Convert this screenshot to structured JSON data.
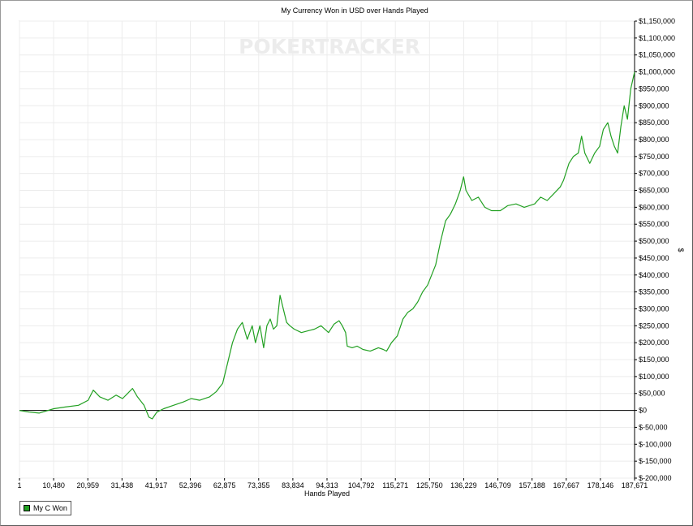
{
  "chart_data": {
    "type": "line",
    "title": "My Currency Won in USD over Hands Played",
    "watermark": "POKERTRACKER",
    "xlabel": "Hands Played",
    "ylabel": "$",
    "x_tick_labels": [
      "1",
      "10,480",
      "20,959",
      "31,438",
      "41,917",
      "52,396",
      "62,875",
      "73,355",
      "83,834",
      "94,313",
      "104,792",
      "115,271",
      "125,750",
      "136,229",
      "146,709",
      "157,188",
      "167,667",
      "178,146",
      "187,671"
    ],
    "y_tick_labels": [
      "$-200,000",
      "$-150,000",
      "$-100,000",
      "$-50,000",
      "$0",
      "$50,000",
      "$100,000",
      "$150,000",
      "$200,000",
      "$250,000",
      "$300,000",
      "$350,000",
      "$400,000",
      "$450,000",
      "$500,000",
      "$550,000",
      "$600,000",
      "$650,000",
      "$700,000",
      "$750,000",
      "$800,000",
      "$850,000",
      "$900,000",
      "$950,000",
      "$1,000,000",
      "$1,050,000",
      "$1,100,000",
      "$1,150,000"
    ],
    "xlim": [
      1,
      187671
    ],
    "ylim": [
      -200000,
      1150000
    ],
    "grid": true,
    "legend_position": "bottom-left",
    "series": [
      {
        "name": "My C Won",
        "color": "#22a022",
        "points": [
          [
            1,
            0
          ],
          [
            3000,
            -5000
          ],
          [
            6000,
            -8000
          ],
          [
            10480,
            5000
          ],
          [
            14000,
            10000
          ],
          [
            18000,
            15000
          ],
          [
            20959,
            30000
          ],
          [
            22500,
            60000
          ],
          [
            24500,
            40000
          ],
          [
            27000,
            30000
          ],
          [
            29500,
            45000
          ],
          [
            31438,
            35000
          ],
          [
            33000,
            50000
          ],
          [
            34500,
            65000
          ],
          [
            36000,
            40000
          ],
          [
            38000,
            15000
          ],
          [
            39500,
            -20000
          ],
          [
            40500,
            -25000
          ],
          [
            41917,
            -5000
          ],
          [
            44000,
            5000
          ],
          [
            47000,
            15000
          ],
          [
            50000,
            25000
          ],
          [
            52396,
            35000
          ],
          [
            55000,
            30000
          ],
          [
            58000,
            40000
          ],
          [
            60000,
            55000
          ],
          [
            62000,
            80000
          ],
          [
            63500,
            140000
          ],
          [
            65000,
            200000
          ],
          [
            66500,
            240000
          ],
          [
            68000,
            260000
          ],
          [
            69500,
            210000
          ],
          [
            71000,
            250000
          ],
          [
            72000,
            200000
          ],
          [
            73355,
            250000
          ],
          [
            74500,
            185000
          ],
          [
            75500,
            250000
          ],
          [
            76500,
            270000
          ],
          [
            77500,
            240000
          ],
          [
            78500,
            250000
          ],
          [
            79500,
            340000
          ],
          [
            80500,
            300000
          ],
          [
            81500,
            260000
          ],
          [
            82500,
            250000
          ],
          [
            83834,
            240000
          ],
          [
            86000,
            230000
          ],
          [
            88000,
            235000
          ],
          [
            90000,
            240000
          ],
          [
            92000,
            250000
          ],
          [
            94313,
            230000
          ],
          [
            96000,
            255000
          ],
          [
            97500,
            265000
          ],
          [
            98500,
            250000
          ],
          [
            99500,
            230000
          ],
          [
            100000,
            190000
          ],
          [
            101500,
            185000
          ],
          [
            103000,
            190000
          ],
          [
            104792,
            180000
          ],
          [
            107000,
            175000
          ],
          [
            109500,
            185000
          ],
          [
            111000,
            180000
          ],
          [
            112000,
            175000
          ],
          [
            113500,
            200000
          ],
          [
            115271,
            220000
          ],
          [
            117000,
            270000
          ],
          [
            118500,
            290000
          ],
          [
            120000,
            300000
          ],
          [
            121500,
            320000
          ],
          [
            123000,
            350000
          ],
          [
            124500,
            370000
          ],
          [
            125750,
            400000
          ],
          [
            127000,
            430000
          ],
          [
            128500,
            500000
          ],
          [
            130000,
            560000
          ],
          [
            131500,
            580000
          ],
          [
            133000,
            610000
          ],
          [
            134500,
            650000
          ],
          [
            135500,
            690000
          ],
          [
            136229,
            650000
          ],
          [
            138000,
            620000
          ],
          [
            140000,
            630000
          ],
          [
            142000,
            600000
          ],
          [
            144000,
            590000
          ],
          [
            146709,
            590000
          ],
          [
            149000,
            605000
          ],
          [
            151500,
            610000
          ],
          [
            154000,
            600000
          ],
          [
            157188,
            610000
          ],
          [
            159000,
            630000
          ],
          [
            161000,
            620000
          ],
          [
            163000,
            640000
          ],
          [
            165000,
            660000
          ],
          [
            166000,
            680000
          ],
          [
            167667,
            730000
          ],
          [
            169000,
            750000
          ],
          [
            170500,
            760000
          ],
          [
            171500,
            810000
          ],
          [
            172500,
            760000
          ],
          [
            174000,
            730000
          ],
          [
            175500,
            760000
          ],
          [
            177000,
            780000
          ],
          [
            178146,
            830000
          ],
          [
            179500,
            850000
          ],
          [
            180500,
            810000
          ],
          [
            181500,
            780000
          ],
          [
            182500,
            760000
          ],
          [
            183500,
            840000
          ],
          [
            184500,
            900000
          ],
          [
            185500,
            860000
          ],
          [
            186500,
            950000
          ],
          [
            187671,
            1000000
          ]
        ]
      }
    ]
  }
}
